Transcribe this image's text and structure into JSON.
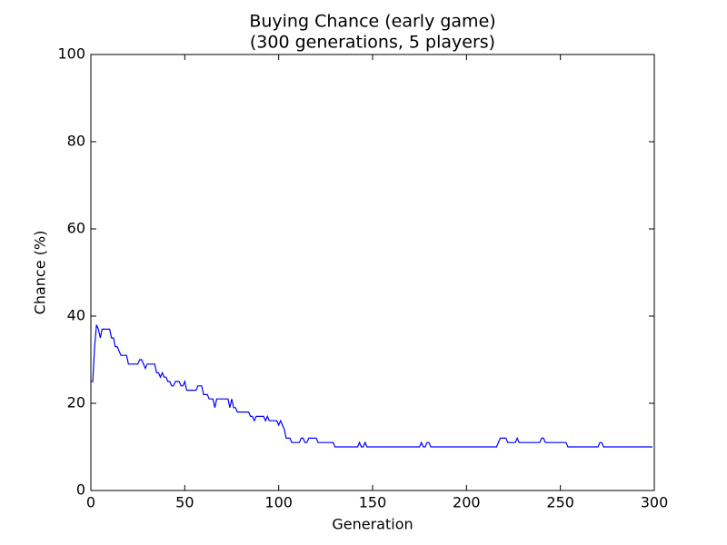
{
  "chart_data": {
    "type": "line",
    "title": "Buying Chance (early game)",
    "subtitle": "(300 generations, 5 players)",
    "x_label": "Generation",
    "y_label": "Chance (%)",
    "xlim": [
      0,
      300
    ],
    "xticks": [
      0,
      50,
      100,
      150,
      200,
      250,
      300
    ],
    "ylim": [
      0,
      100
    ],
    "yticks": [
      0,
      20,
      40,
      60,
      80,
      100
    ],
    "grid": false,
    "x": [
      0,
      1,
      2,
      3,
      4,
      5,
      6,
      7,
      8,
      9,
      10,
      11,
      12,
      13,
      14,
      15,
      16,
      17,
      18,
      19,
      20,
      21,
      22,
      23,
      24,
      25,
      26,
      27,
      28,
      29,
      30,
      31,
      32,
      33,
      34,
      35,
      36,
      37,
      38,
      39,
      40,
      41,
      42,
      43,
      44,
      45,
      46,
      47,
      48,
      49,
      50,
      51,
      52,
      53,
      54,
      55,
      56,
      57,
      58,
      59,
      60,
      61,
      62,
      63,
      64,
      65,
      66,
      67,
      68,
      69,
      70,
      71,
      72,
      73,
      74,
      75,
      76,
      77,
      78,
      79,
      80,
      81,
      82,
      83,
      84,
      85,
      86,
      87,
      88,
      89,
      90,
      91,
      92,
      93,
      94,
      95,
      96,
      97,
      98,
      99,
      100,
      101,
      102,
      103,
      104,
      105,
      106,
      107,
      108,
      109,
      110,
      111,
      112,
      113,
      114,
      115,
      116,
      117,
      118,
      119,
      120,
      121,
      122,
      123,
      124,
      125,
      126,
      127,
      128,
      129,
      130,
      131,
      132,
      133,
      134,
      135,
      136,
      137,
      138,
      139,
      140,
      141,
      142,
      143,
      144,
      145,
      146,
      147,
      148,
      149,
      150,
      151,
      152,
      153,
      154,
      155,
      156,
      157,
      158,
      159,
      160,
      161,
      162,
      163,
      164,
      165,
      166,
      167,
      168,
      169,
      170,
      171,
      172,
      173,
      174,
      175,
      176,
      177,
      178,
      179,
      180,
      181,
      182,
      183,
      184,
      185,
      186,
      187,
      188,
      189,
      190,
      191,
      192,
      193,
      194,
      195,
      196,
      197,
      198,
      199,
      200,
      201,
      202,
      203,
      204,
      205,
      206,
      207,
      208,
      209,
      210,
      211,
      212,
      213,
      214,
      215,
      216,
      217,
      218,
      219,
      220,
      221,
      222,
      223,
      224,
      225,
      226,
      227,
      228,
      229,
      230,
      231,
      232,
      233,
      234,
      235,
      236,
      237,
      238,
      239,
      240,
      241,
      242,
      243,
      244,
      245,
      246,
      247,
      248,
      249,
      250,
      251,
      252,
      253,
      254,
      255,
      256,
      257,
      258,
      259,
      260,
      261,
      262,
      263,
      264,
      265,
      266,
      267,
      268,
      269,
      270,
      271,
      272,
      273,
      274,
      275,
      276,
      277,
      278,
      279,
      280,
      281,
      282,
      283,
      284,
      285,
      286,
      287,
      288,
      289,
      290,
      291,
      292,
      293,
      294,
      295,
      296,
      297,
      298,
      299
    ],
    "series": [
      {
        "color": "#0000ff",
        "values": [
          25,
          25,
          33,
          38,
          37,
          35,
          37,
          37,
          37,
          37,
          37,
          35,
          35,
          33,
          33,
          32,
          31,
          31,
          31,
          31,
          29,
          29,
          29,
          29,
          29,
          29,
          30,
          30,
          29,
          28,
          29,
          29,
          29,
          29,
          29,
          27,
          27,
          26,
          27,
          26,
          26,
          25,
          25,
          24,
          24,
          25,
          25,
          25,
          24,
          24,
          25,
          23,
          23,
          23,
          23,
          23,
          23,
          24,
          24,
          24,
          22,
          22,
          22,
          21,
          21,
          21,
          19,
          21,
          21,
          21,
          21,
          21,
          21,
          21,
          19,
          21,
          19,
          19,
          18,
          18,
          18,
          18,
          18,
          18,
          18,
          17,
          17,
          16,
          17,
          17,
          17,
          17,
          17,
          16,
          17,
          16,
          16,
          16,
          16,
          16,
          15,
          16,
          15,
          14,
          12,
          12,
          12,
          11,
          11,
          11,
          11,
          11,
          12,
          12,
          11,
          11,
          12,
          12,
          12,
          12,
          12,
          11,
          11,
          11,
          11,
          11,
          11,
          11,
          11,
          11,
          10,
          10,
          10,
          10,
          10,
          10,
          10,
          10,
          10,
          10,
          10,
          10,
          10,
          11,
          10,
          10,
          11,
          10,
          10,
          10,
          10,
          10,
          10,
          10,
          10,
          10,
          10,
          10,
          10,
          10,
          10,
          10,
          10,
          10,
          10,
          10,
          10,
          10,
          10,
          10,
          10,
          10,
          10,
          10,
          10,
          10,
          11,
          10,
          10,
          11,
          11,
          10,
          10,
          10,
          10,
          10,
          10,
          10,
          10,
          10,
          10,
          10,
          10,
          10,
          10,
          10,
          10,
          10,
          10,
          10,
          10,
          10,
          10,
          10,
          10,
          10,
          10,
          10,
          10,
          10,
          10,
          10,
          10,
          10,
          10,
          10,
          10,
          11,
          12,
          12,
          12,
          12,
          11,
          11,
          11,
          11,
          11,
          12,
          11,
          11,
          11,
          11,
          11,
          11,
          11,
          11,
          11,
          11,
          11,
          11,
          12,
          12,
          11,
          11,
          11,
          11,
          11,
          11,
          11,
          11,
          11,
          11,
          11,
          11,
          10,
          10,
          10,
          10,
          10,
          10,
          10,
          10,
          10,
          10,
          10,
          10,
          10,
          10,
          10,
          10,
          10,
          11,
          11,
          10,
          10,
          10,
          10,
          10,
          10,
          10,
          10,
          10,
          10,
          10,
          10,
          10,
          10,
          10,
          10,
          10,
          10,
          10,
          10,
          10,
          10,
          10,
          10,
          10,
          10,
          10
        ]
      }
    ]
  }
}
